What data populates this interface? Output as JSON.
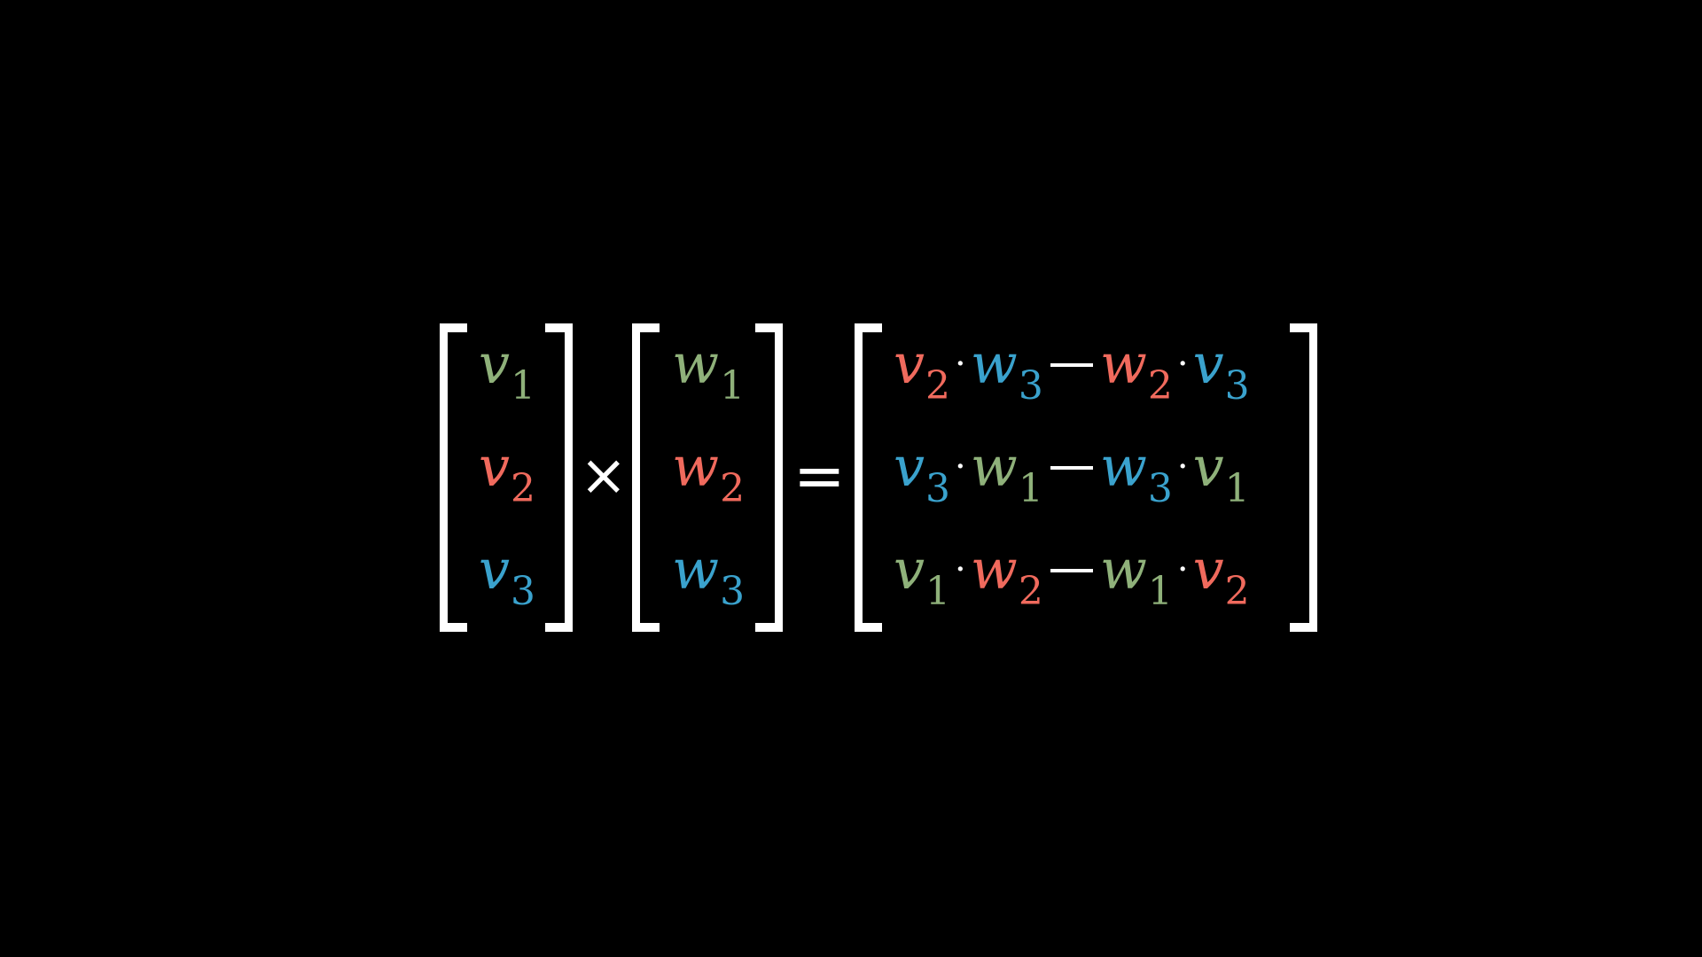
{
  "colors": {
    "background": "#000000",
    "green": "#8fb17a",
    "red": "#f06a5d",
    "blue": "#3aa2cd",
    "white": "#ffffff"
  },
  "vector_v": [
    {
      "sym": "v",
      "sub": "1",
      "color": "green"
    },
    {
      "sym": "v",
      "sub": "2",
      "color": "red"
    },
    {
      "sym": "v",
      "sub": "3",
      "color": "blue"
    }
  ],
  "vector_w": [
    {
      "sym": "w",
      "sub": "1",
      "color": "green"
    },
    {
      "sym": "w",
      "sub": "2",
      "color": "red"
    },
    {
      "sym": "w",
      "sub": "3",
      "color": "blue"
    }
  ],
  "operators": {
    "cross": "×",
    "equals": "=",
    "dot": "·"
  },
  "result_rows": [
    [
      {
        "sym": "v",
        "sub": "2",
        "color": "red"
      },
      {
        "sym": "w",
        "sub": "3",
        "color": "blue"
      },
      {
        "sym": "w",
        "sub": "2",
        "color": "red"
      },
      {
        "sym": "v",
        "sub": "3",
        "color": "blue"
      }
    ],
    [
      {
        "sym": "v",
        "sub": "3",
        "color": "blue"
      },
      {
        "sym": "w",
        "sub": "1",
        "color": "green"
      },
      {
        "sym": "w",
        "sub": "3",
        "color": "blue"
      },
      {
        "sym": "v",
        "sub": "1",
        "color": "green"
      }
    ],
    [
      {
        "sym": "v",
        "sub": "1",
        "color": "green"
      },
      {
        "sym": "w",
        "sub": "2",
        "color": "red"
      },
      {
        "sym": "w",
        "sub": "1",
        "color": "green"
      },
      {
        "sym": "v",
        "sub": "2",
        "color": "red"
      }
    ]
  ]
}
